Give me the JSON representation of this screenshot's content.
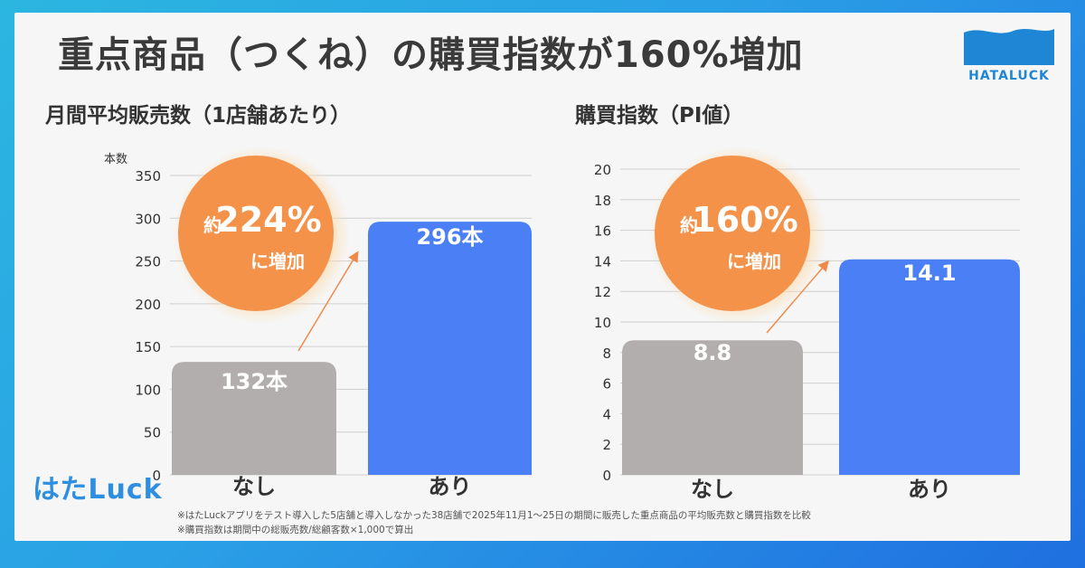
{
  "title": "重点商品（つくね）の購買指数が160%増加",
  "logo": {
    "text": "HATALUCK"
  },
  "brand": "はたLuck",
  "footnotes": [
    "※はたLuckアプリをテスト導入した5店舗と導入しなかった38店舗で2025年11月1〜25日の期間に販売した重点商品の平均販売数と購買指数を比較",
    "※購買指数は期間中の総販売数/総顧客数×1,000で算出"
  ],
  "colors": {
    "bar_none": "#b3aeae",
    "bar_with": "#4a7ff5",
    "badge": "#f5924a",
    "badge_glow": "#fcd9a8",
    "arrow": "#f08a4a"
  },
  "chart_data": [
    {
      "type": "bar",
      "title": "月間平均販売数（1店舗あたり）",
      "ylabel": "本数",
      "categories": [
        "なし",
        "あり"
      ],
      "values": [
        132,
        296
      ],
      "value_labels": [
        "132本",
        "296本"
      ],
      "ylim": [
        0,
        350
      ],
      "yticks": [
        0,
        50,
        100,
        150,
        200,
        250,
        300,
        350
      ],
      "grid": true,
      "badge": {
        "prefix": "約",
        "value": "224%",
        "suffix": "に増加"
      }
    },
    {
      "type": "bar",
      "title": "購買指数（PI値）",
      "ylabel": "",
      "categories": [
        "なし",
        "あり"
      ],
      "values": [
        8.8,
        14.1
      ],
      "value_labels": [
        "8.8",
        "14.1"
      ],
      "ylim": [
        0,
        20
      ],
      "yticks": [
        0,
        2,
        4,
        6,
        8,
        10,
        12,
        14,
        16,
        18,
        20
      ],
      "grid": true,
      "badge": {
        "prefix": "約",
        "value": "160%",
        "suffix": "に増加"
      }
    }
  ]
}
